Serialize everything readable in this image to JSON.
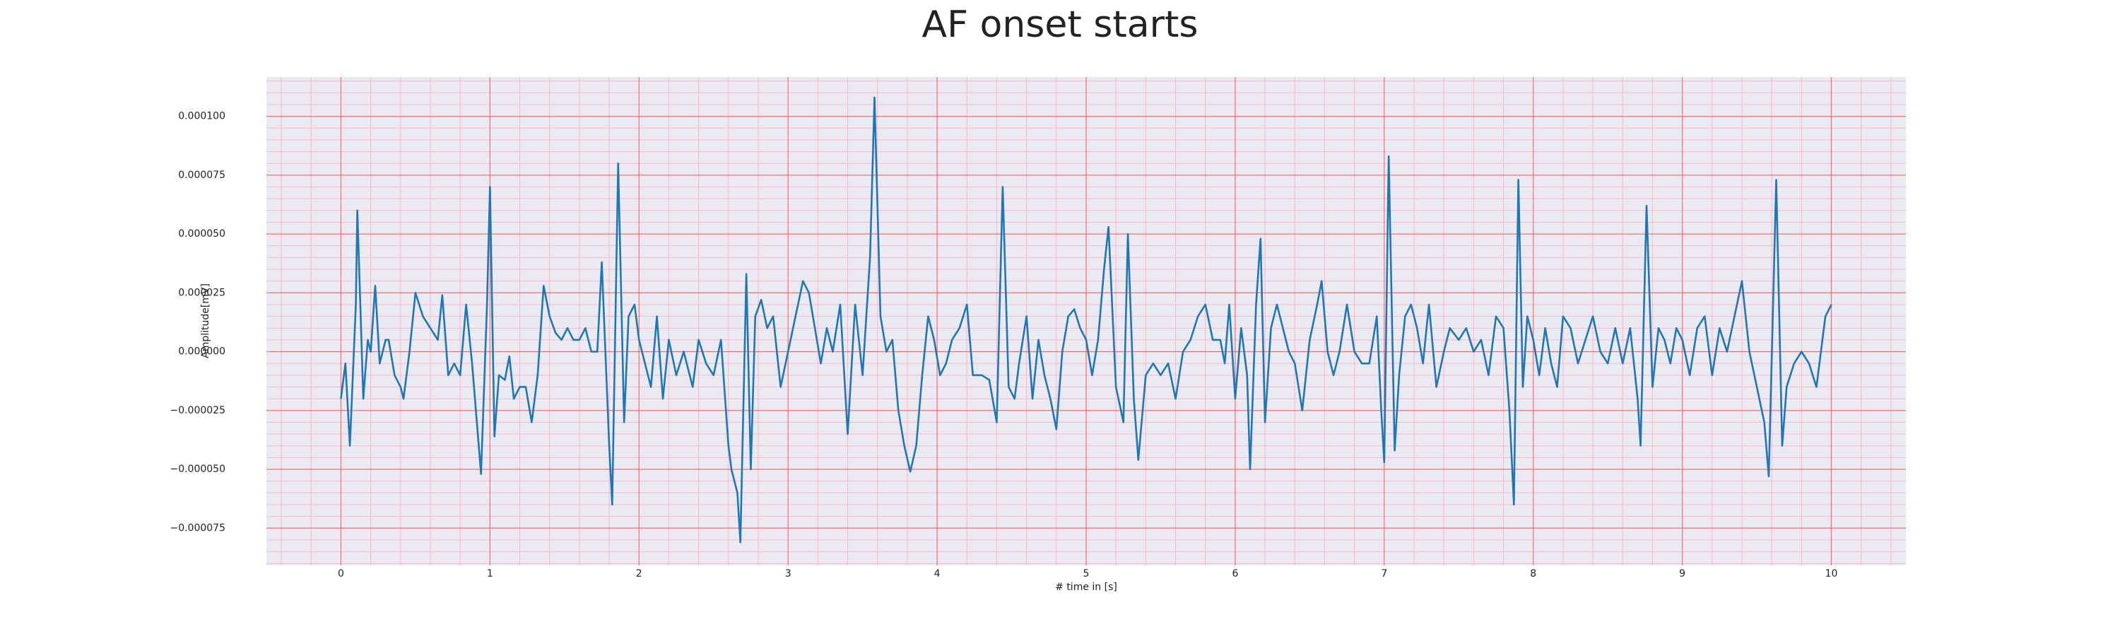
{
  "chart_data": {
    "type": "line",
    "title": "AF onset starts",
    "xlabel": "# time in [s]",
    "ylabel": "Amplitude[mV]",
    "color": "#1f77b4",
    "grid": true,
    "xlim": [
      -0.5,
      10.5
    ],
    "ylim": [
      -9.08e-05,
      0.0001167
    ],
    "xticks": [
      0,
      1,
      2,
      3,
      4,
      5,
      6,
      7,
      8,
      9,
      10
    ],
    "yticks": [
      {
        "value": -7.5e-05,
        "label": "−0.000075"
      },
      {
        "value": -5e-05,
        "label": "−0.000050"
      },
      {
        "value": -2.5e-05,
        "label": "−0.000025"
      },
      {
        "value": 0,
        "label": "0.000000"
      },
      {
        "value": 2.5e-05,
        "label": "0.000025"
      },
      {
        "value": 5e-05,
        "label": "0.000050"
      },
      {
        "value": 7.5e-05,
        "label": "0.000075"
      },
      {
        "value": 0.0001,
        "label": "0.000100"
      }
    ],
    "minor_xticks": [
      -0.4,
      -0.2,
      0.2,
      0.4,
      0.6,
      0.8,
      1.2,
      1.4,
      1.6,
      1.8,
      2.2,
      2.4,
      2.6,
      2.8,
      3.2,
      3.4,
      3.6,
      3.8,
      4.2,
      4.4,
      4.6,
      4.8,
      5.2,
      5.4,
      5.6,
      5.8,
      6.2,
      6.4,
      6.6,
      6.8,
      7.2,
      7.4,
      7.6,
      7.8,
      8.2,
      8.4,
      8.6,
      8.8,
      9.2,
      9.4,
      9.6,
      9.8,
      10.2,
      10.4
    ],
    "minor_yticks": [
      -9e-05,
      -8.5e-05,
      -8e-05,
      -7e-05,
      -6.5e-05,
      -6e-05,
      -5.5e-05,
      -4.5e-05,
      -4e-05,
      -3.5e-05,
      -3e-05,
      -2e-05,
      -1.5e-05,
      -1e-05,
      -5e-06,
      5e-06,
      1e-05,
      1.5e-05,
      2e-05,
      3e-05,
      3.5e-05,
      4e-05,
      4.5e-05,
      5.5e-05,
      6e-05,
      6.5e-05,
      7e-05,
      8e-05,
      8.5e-05,
      9e-05,
      9.5e-05,
      0.000105,
      0.00011,
      0.000115
    ],
    "x": [
      0,
      0.03,
      0.06,
      0.1,
      0.11,
      0.15,
      0.18,
      0.2,
      0.23,
      0.26,
      0.3,
      0.32,
      0.36,
      0.4,
      0.42,
      0.46,
      0.5,
      0.55,
      0.6,
      0.65,
      0.68,
      0.72,
      0.76,
      0.8,
      0.84,
      0.88,
      0.94,
      0.98,
      1.0,
      1.03,
      1.06,
      1.1,
      1.13,
      1.16,
      1.2,
      1.24,
      1.28,
      1.32,
      1.36,
      1.4,
      1.44,
      1.48,
      1.52,
      1.56,
      1.6,
      1.64,
      1.68,
      1.72,
      1.75,
      1.8,
      1.82,
      1.86,
      1.9,
      1.93,
      1.97,
      2.0,
      2.04,
      2.08,
      2.12,
      2.16,
      2.2,
      2.25,
      2.3,
      2.36,
      2.4,
      2.45,
      2.5,
      2.55,
      2.6,
      2.62,
      2.66,
      2.68,
      2.72,
      2.75,
      2.78,
      2.82,
      2.86,
      2.9,
      2.95,
      3.0,
      3.05,
      3.1,
      3.14,
      3.18,
      3.22,
      3.26,
      3.3,
      3.35,
      3.4,
      3.45,
      3.5,
      3.55,
      3.58,
      3.62,
      3.66,
      3.7,
      3.74,
      3.78,
      3.82,
      3.86,
      3.9,
      3.94,
      3.98,
      4.02,
      4.06,
      4.1,
      4.15,
      4.2,
      4.24,
      4.3,
      4.35,
      4.4,
      4.44,
      4.48,
      4.52,
      4.55,
      4.6,
      4.64,
      4.68,
      4.72,
      4.76,
      4.8,
      4.84,
      4.88,
      4.92,
      4.96,
      5.0,
      5.04,
      5.08,
      5.12,
      5.15,
      5.2,
      5.25,
      5.28,
      5.32,
      5.35,
      5.4,
      5.45,
      5.5,
      5.55,
      5.6,
      5.65,
      5.7,
      5.75,
      5.8,
      5.85,
      5.9,
      5.93,
      5.96,
      6.0,
      6.04,
      6.08,
      6.1,
      6.14,
      6.17,
      6.2,
      6.24,
      6.28,
      6.32,
      6.36,
      6.4,
      6.45,
      6.5,
      6.55,
      6.58,
      6.62,
      6.66,
      6.7,
      6.75,
      6.8,
      6.85,
      6.9,
      6.95,
      6.98,
      7.0,
      7.03,
      7.07,
      7.1,
      7.14,
      7.18,
      7.22,
      7.26,
      7.3,
      7.35,
      7.4,
      7.44,
      7.5,
      7.55,
      7.6,
      7.65,
      7.7,
      7.75,
      7.8,
      7.84,
      7.87,
      7.9,
      7.93,
      7.96,
      8.0,
      8.04,
      8.08,
      8.12,
      8.16,
      8.2,
      8.25,
      8.3,
      8.35,
      8.4,
      8.45,
      8.5,
      8.55,
      8.6,
      8.65,
      8.7,
      8.72,
      8.76,
      8.8,
      8.84,
      8.88,
      8.92,
      8.96,
      9.0,
      9.05,
      9.1,
      9.15,
      9.2,
      9.25,
      9.3,
      9.35,
      9.4,
      9.45,
      9.5,
      9.55,
      9.58,
      9.63,
      9.67,
      9.7,
      9.75,
      9.8,
      9.85,
      9.9,
      9.93,
      9.96,
      10.0
    ],
    "values": [
      -2e-05,
      -5e-06,
      -4e-05,
      2e-05,
      6e-05,
      -2e-05,
      5e-06,
      0,
      2.8e-05,
      -5e-06,
      5e-06,
      5e-06,
      -1e-05,
      -1.5e-05,
      -2e-05,
      0,
      2.5e-05,
      1.5e-05,
      1e-05,
      5e-06,
      2.4e-05,
      -1e-05,
      -5e-06,
      -1e-05,
      2e-05,
      -5e-06,
      -5.2e-05,
      2e-05,
      7e-05,
      -3.6e-05,
      -1e-05,
      -1.2e-05,
      -2e-06,
      -2e-05,
      -1.5e-05,
      -1.5e-05,
      -3e-05,
      -1e-05,
      2.8e-05,
      1.5e-05,
      8e-06,
      5e-06,
      1e-05,
      5e-06,
      5e-06,
      1e-05,
      0,
      0,
      3.8e-05,
      -4e-05,
      -6.5e-05,
      8e-05,
      -3e-05,
      1.5e-05,
      2e-05,
      5e-06,
      -5e-06,
      -1.5e-05,
      1.5e-05,
      -2e-05,
      5e-06,
      -1e-05,
      0,
      -1.5e-05,
      5e-06,
      -5e-06,
      -1e-05,
      5e-06,
      -4e-05,
      -5e-05,
      -6e-05,
      -8.1e-05,
      3.3e-05,
      -5e-05,
      1.5e-05,
      2.2e-05,
      1e-05,
      1.5e-05,
      -1.5e-05,
      0,
      1.5e-05,
      3e-05,
      2.5e-05,
      1e-05,
      -5e-06,
      1e-05,
      0,
      2e-05,
      -3.5e-05,
      2e-05,
      -1e-05,
      4e-05,
      0.000108,
      1.5e-05,
      0,
      5e-06,
      -2.5e-05,
      -4e-05,
      -5.1e-05,
      -4e-05,
      -1e-05,
      1.5e-05,
      5e-06,
      -1e-05,
      -5e-06,
      5e-06,
      1e-05,
      2e-05,
      -1e-05,
      -1e-05,
      -1.2e-05,
      -3e-05,
      7e-05,
      -1.5e-05,
      -2e-05,
      -5e-06,
      1.5e-05,
      -2e-05,
      5e-06,
      -1e-05,
      -2e-05,
      -3.3e-05,
      0,
      1.5e-05,
      1.8e-05,
      1e-05,
      5e-06,
      -1e-05,
      5e-06,
      3.5e-05,
      5.3e-05,
      -1.5e-05,
      -3e-05,
      5e-05,
      -2e-05,
      -4.6e-05,
      -1e-05,
      -5e-06,
      -1e-05,
      -5e-06,
      -2e-05,
      0,
      5e-06,
      1.5e-05,
      2e-05,
      5e-06,
      5e-06,
      -5e-06,
      2e-05,
      -2e-05,
      1e-05,
      -1e-05,
      -5e-05,
      2e-05,
      4.8e-05,
      -3e-05,
      1e-05,
      2e-05,
      1e-05,
      0,
      -5e-06,
      -2.5e-05,
      5e-06,
      2e-05,
      3e-05,
      0,
      -1e-05,
      0,
      2e-05,
      0,
      -5e-06,
      -5e-06,
      1.5e-05,
      -2.5e-05,
      -4.7e-05,
      8.3e-05,
      -4.2e-05,
      -1e-05,
      1.5e-05,
      2e-05,
      1e-05,
      -5e-06,
      2e-05,
      -1.5e-05,
      0,
      1e-05,
      5e-06,
      1e-05,
      0,
      5e-06,
      -1e-05,
      1.5e-05,
      1e-05,
      -2.5e-05,
      -6.5e-05,
      7.3e-05,
      -1.5e-05,
      1.5e-05,
      5e-06,
      -1e-05,
      1e-05,
      -5e-06,
      -1.5e-05,
      1.5e-05,
      1e-05,
      -5e-06,
      5e-06,
      1.5e-05,
      0,
      -5e-06,
      1e-05,
      -5e-06,
      1e-05,
      -2e-05,
      -4e-05,
      6.2e-05,
      -1.5e-05,
      1e-05,
      5e-06,
      -5e-06,
      1e-05,
      5e-06,
      -1e-05,
      1e-05,
      1.5e-05,
      -1e-05,
      1e-05,
      0,
      1.5e-05,
      3e-05,
      0,
      -1.5e-05,
      -3e-05,
      -5.3e-05,
      7.3e-05,
      -4e-05,
      -1.5e-05,
      -5e-06,
      0,
      -5e-06,
      -1.5e-05,
      0,
      1.5e-05,
      2e-05
    ]
  }
}
